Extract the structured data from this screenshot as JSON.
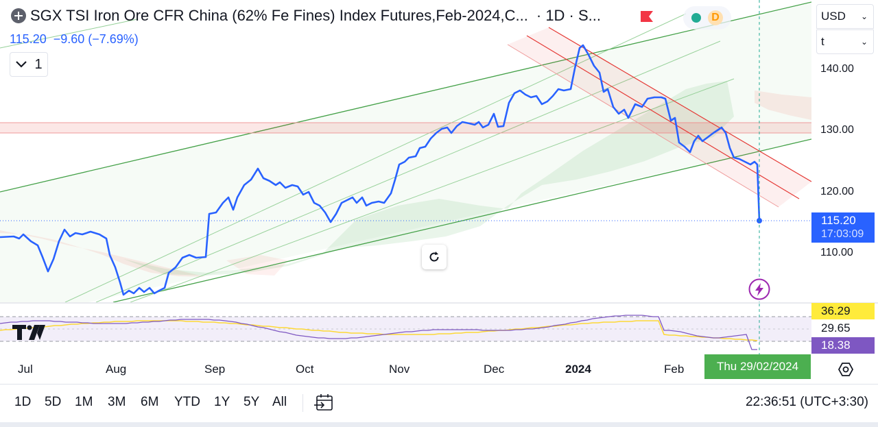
{
  "header": {
    "symbol_title": "SGX TSI Iron Ore CFR China (62% Fe Fines) Index Futures,Feb-2024,C...",
    "interval": "· 1D · S...",
    "last_price": "115.20",
    "change": "−9.60 (−7.69%)",
    "status_letter": "D"
  },
  "controls": {
    "currency": "USD",
    "unit": "t",
    "collapse_count": "1"
  },
  "price_axis": {
    "ticks": [
      "140.00",
      "130.00",
      "120.00",
      "110.00"
    ],
    "last_price_label": "115.20",
    "countdown": "17:03:09"
  },
  "rsi": {
    "rsi_value": "36.29",
    "middle_value": "29.65",
    "ma_value": "18.38"
  },
  "time_axis": {
    "ticks": [
      {
        "label": "Jul",
        "bold": false
      },
      {
        "label": "Aug",
        "bold": false
      },
      {
        "label": "Sep",
        "bold": false
      },
      {
        "label": "Oct",
        "bold": false
      },
      {
        "label": "Nov",
        "bold": false
      },
      {
        "label": "Dec",
        "bold": false
      },
      {
        "label": "2024",
        "bold": true
      },
      {
        "label": "Feb",
        "bold": false
      }
    ],
    "crosshair_date": "Thu 29/02/2024"
  },
  "bottom_bar": {
    "ranges": [
      "1D",
      "5D",
      "1M",
      "3M",
      "6M",
      "YTD",
      "1Y",
      "5Y",
      "All"
    ],
    "clock": "22:36:51 (UTC+3:30)"
  },
  "colors": {
    "price_line": "#2962ff",
    "channel_green": "#43a047",
    "channel_red": "#e53935",
    "rsi_line": "#7e57c2",
    "rsi_ma": "#fdd835",
    "date_badge": "#4caf50"
  },
  "icons": [
    "symbol-icon",
    "flag-icon",
    "chevron-down-icon",
    "reset-icon",
    "flash-icon",
    "tradingview-logo",
    "settings-icon",
    "goto-date-icon"
  ]
}
